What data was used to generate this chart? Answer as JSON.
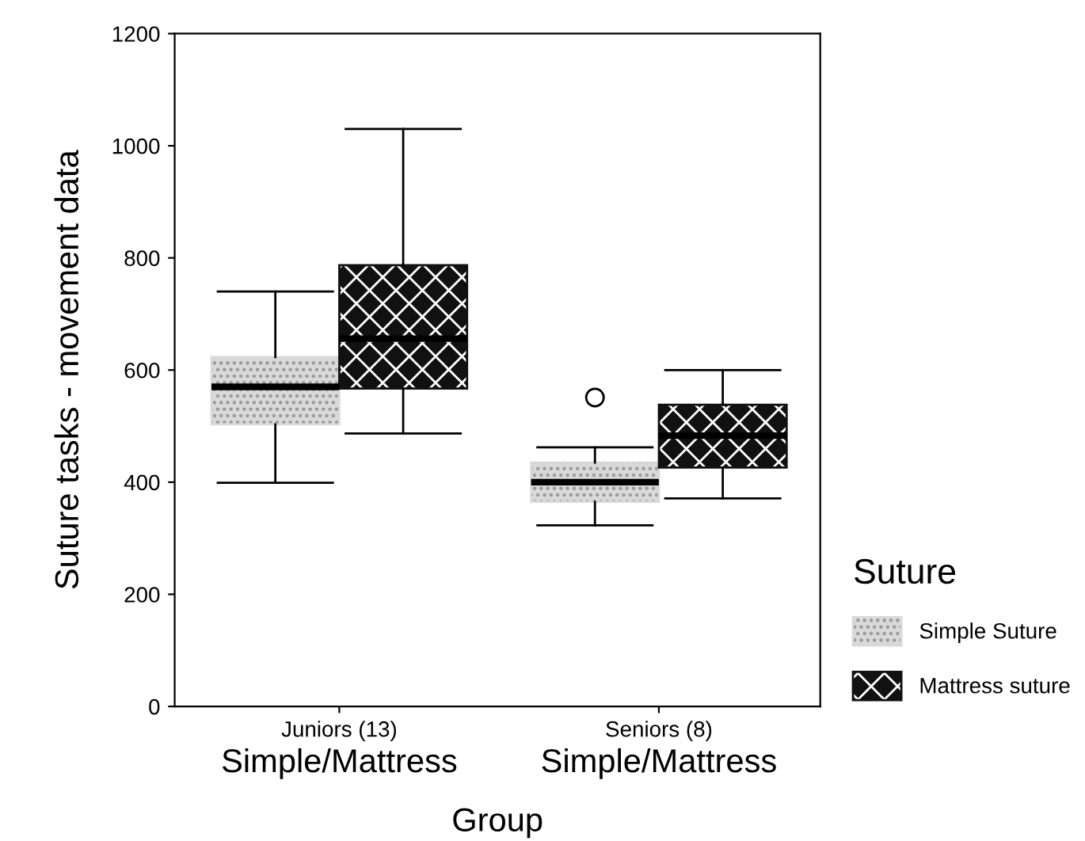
{
  "chart_data": {
    "type": "box",
    "xlabel": "Group",
    "ylabel": "Suture tasks - movement data",
    "legend_title": "Suture",
    "categories": [
      "Juniors (13)",
      "Seniors (8)"
    ],
    "annotations": [
      "Simple/Mattress",
      "Simple/Mattress"
    ],
    "series": [
      {
        "name": "Simple Suture",
        "color": "#d9d9d9",
        "boxes": [
          {
            "low": 399,
            "q1": 503,
            "median": 570,
            "q3": 623,
            "high": 740
          },
          {
            "low": 323,
            "q1": 365,
            "median": 400,
            "q3": 435,
            "high": 462,
            "outliers": [
              551
            ]
          }
        ]
      },
      {
        "name": "Mattress suture",
        "color": "#111111",
        "boxes": [
          {
            "low": 487,
            "q1": 567,
            "median": 656,
            "q3": 787,
            "high": 1030
          },
          {
            "low": 371,
            "q1": 426,
            "median": 483,
            "q3": 538,
            "high": 600
          }
        ]
      }
    ],
    "ylim": [
      0,
      1200
    ],
    "yticks": [
      0,
      200,
      400,
      600,
      800,
      1000,
      1200
    ],
    "grid": false,
    "legend": "right"
  }
}
